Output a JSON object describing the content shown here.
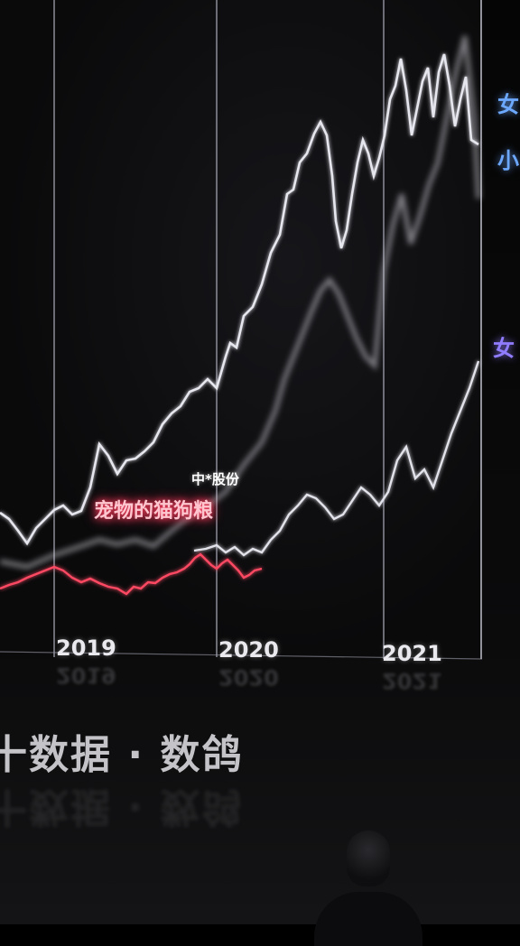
{
  "chart": {
    "years": [
      "2019",
      "2020",
      "2021"
    ],
    "callout_stock": "中*股份",
    "callout_product": "宠物的猫狗粮",
    "series_label_1": "女",
    "series_label_2": "小",
    "series_label_3": "女"
  },
  "watermark": "十数据 · 数鸽",
  "colors": {
    "background": "#000000",
    "line_white": "#e6e6ee",
    "line_red": "#ff4a64",
    "label_blue": "#6da8ff",
    "gridline": "#b8b8c8"
  }
}
